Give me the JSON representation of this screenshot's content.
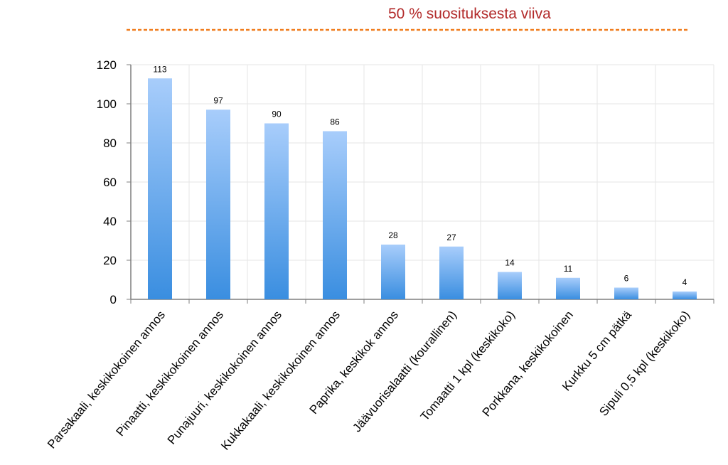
{
  "legend": {
    "reference_line_label": "50 % suosituksesta viiva",
    "reference_line_color": "#f07d1e",
    "text_color": "#b22a2a"
  },
  "colors": {
    "bar_top": "#a8cdfb",
    "bar_bottom": "#3a8ee0",
    "grid": "#e6e6e6",
    "axis": "#7f7f7f"
  },
  "chart_data": {
    "type": "bar",
    "categories": [
      "Parsakaali, keskikokoinen annos",
      "Pinaatti, keskikokoinen annos",
      "Punajuuri, keskikokoinen annos",
      "Kukkakaali, keskikokoinen annos",
      "Paprika, keskikok annos",
      "Jäävuorisalaatti (kourallinen)",
      "Tomaatti 1 kpl (keskikoko)",
      "Porkkana, keskikokoinen",
      "Kurkku 5 cm pätkä",
      "Sipuli 0,5 kpl (keskikoko)"
    ],
    "values": [
      113,
      97,
      90,
      86,
      28,
      27,
      14,
      11,
      6,
      4
    ],
    "data_labels": [
      "113",
      "97",
      "90",
      "86",
      "28",
      "27",
      "14",
      "11",
      "6",
      "4"
    ],
    "ylim": [
      0,
      120
    ],
    "yticks": [
      "0",
      "20",
      "40",
      "60",
      "80",
      "100",
      "120"
    ],
    "ytick_values": [
      0,
      20,
      40,
      60,
      80,
      100,
      120
    ],
    "grid": true,
    "xlabel": "",
    "ylabel": ""
  }
}
